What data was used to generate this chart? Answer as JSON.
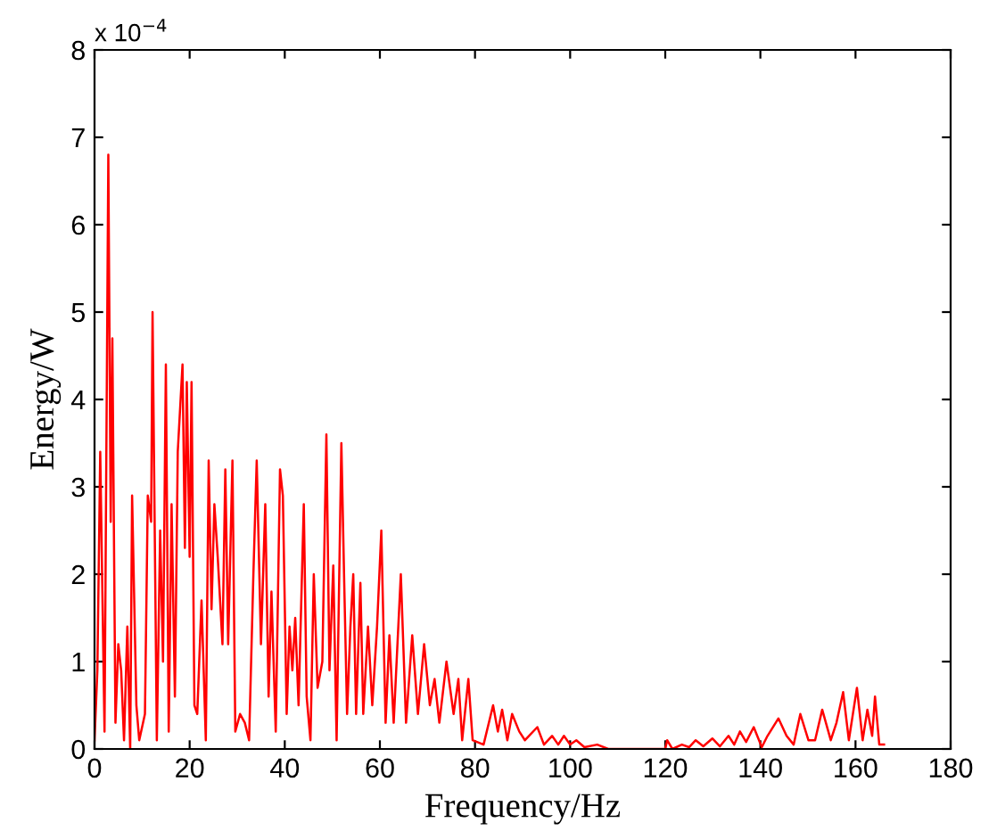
{
  "chart_data": {
    "type": "line",
    "xlabel": "Frequency/Hz",
    "ylabel": "Energy/W",
    "annotations": [
      "x 10$^{−4}$"
    ],
    "xlim": [
      0,
      180
    ],
    "ylim": [
      0,
      8
    ],
    "xticks": [
      0,
      20,
      40,
      60,
      80,
      100,
      120,
      140,
      160,
      180
    ],
    "yticks": [
      0,
      1,
      2,
      3,
      4,
      5,
      6,
      7,
      8
    ],
    "grid": false,
    "legend": false,
    "marker": "none",
    "line_style": "solid",
    "series": [
      {
        "color": "#ff0000",
        "x": [
          0,
          0.6,
          1.2,
          2.1,
          2.9,
          3.4,
          3.75,
          4.4,
          5,
          5.6,
          6.2,
          6.9,
          7.5,
          7.9,
          8.8,
          9.4,
          10.6,
          11.2,
          11.9,
          12.2,
          13.1,
          13.8,
          14.4,
          15,
          15.6,
          16.2,
          16.9,
          17.5,
          18.5,
          19,
          19.4,
          20,
          20.4,
          21,
          21.6,
          22.5,
          23.4,
          24,
          24.6,
          25.2,
          25.9,
          26.9,
          27.5,
          28.1,
          29,
          29.6,
          30.6,
          31.6,
          32.5,
          33.4,
          34.1,
          35,
          35.9,
          36.6,
          37.2,
          38.1,
          39,
          39.6,
          40.4,
          41,
          41.6,
          42.2,
          42.9,
          44,
          44.6,
          45.4,
          46.1,
          46.9,
          47.9,
          48.75,
          49.4,
          50.2,
          50.9,
          51.9,
          52.5,
          53.1,
          53.8,
          54.4,
          55,
          55.9,
          56.5,
          57.5,
          58.4,
          59.4,
          60.3,
          61.2,
          62,
          62.9,
          64.4,
          65.5,
          66.8,
          68,
          69.3,
          70.5,
          71.5,
          72.5,
          74,
          75.5,
          76.5,
          77.3,
          78.6,
          79.5,
          81.8,
          83.8,
          84.8,
          85.7,
          86.8,
          87.8,
          89.3,
          90.5,
          93.1,
          94.5,
          96.2,
          97.5,
          98.7,
          100,
          101.3,
          103,
          105.7,
          108,
          112,
          116,
          120,
          120.4,
          121.5,
          123.5,
          125,
          126.4,
          128,
          129.9,
          131.5,
          133.3,
          134.5,
          135.7,
          137,
          138.6,
          140.3,
          141.5,
          143.8,
          145.5,
          147,
          148.4,
          150.1,
          151.5,
          153,
          154.8,
          156,
          157.4,
          158.6,
          160.3,
          161.5,
          162.5,
          163.5,
          164.1,
          165,
          166
        ],
        "values": [
          0.1,
          0.9,
          3.4,
          0.2,
          6.8,
          2.6,
          4.7,
          0.3,
          1.2,
          0.9,
          0.1,
          1.4,
          0.0,
          2.9,
          0.5,
          0.1,
          0.4,
          2.9,
          2.6,
          5.0,
          0.1,
          2.5,
          1.0,
          4.4,
          0.2,
          2.8,
          0.6,
          3.4,
          4.4,
          2.3,
          4.2,
          2.2,
          4.2,
          0.5,
          0.4,
          1.7,
          0.1,
          3.3,
          1.6,
          2.8,
          2.2,
          1.2,
          3.2,
          1.2,
          3.3,
          0.2,
          0.4,
          0.3,
          0.1,
          2.0,
          3.3,
          1.2,
          2.8,
          0.6,
          1.8,
          0.2,
          3.2,
          2.9,
          0.4,
          1.4,
          0.9,
          1.5,
          0.5,
          2.8,
          0.6,
          0.1,
          2.0,
          0.7,
          1.0,
          3.6,
          0.9,
          2.1,
          0.1,
          3.5,
          1.9,
          0.4,
          1.4,
          2.0,
          0.4,
          1.9,
          0.4,
          1.4,
          0.5,
          1.4,
          2.5,
          0.3,
          1.3,
          0.3,
          2.0,
          0.3,
          1.3,
          0.4,
          1.2,
          0.5,
          0.8,
          0.3,
          1.0,
          0.4,
          0.8,
          0.1,
          0.8,
          0.1,
          0.05,
          0.5,
          0.2,
          0.45,
          0.1,
          0.4,
          0.2,
          0.1,
          0.25,
          0.05,
          0.15,
          0.05,
          0.15,
          0.05,
          0.1,
          0.02,
          0.05,
          0.0,
          0.0,
          0.0,
          0.0,
          0.1,
          0.0,
          0.05,
          0.02,
          0.1,
          0.03,
          0.12,
          0.03,
          0.15,
          0.05,
          0.2,
          0.08,
          0.25,
          0.02,
          0.15,
          0.35,
          0.15,
          0.05,
          0.4,
          0.1,
          0.1,
          0.45,
          0.1,
          0.3,
          0.65,
          0.1,
          0.7,
          0.1,
          0.45,
          0.15,
          0.6,
          0.05,
          0.05
        ]
      }
    ]
  }
}
